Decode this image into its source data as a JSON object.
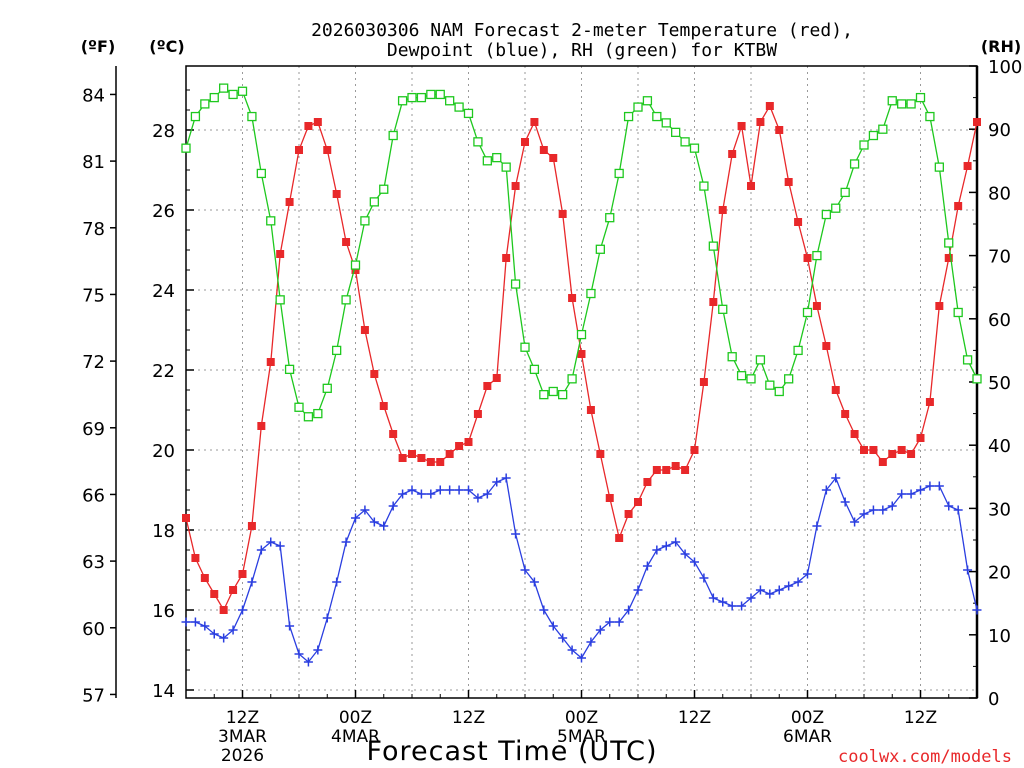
{
  "chart_data": {
    "type": "line",
    "title_line1": "2026030306 NAM Forecast 2-meter Temperature (red),",
    "title_line2": "Dewpoint (blue), RH (green) for KTBW",
    "xlabel": "Forecast Time (UTC)",
    "credit": "coolwx.com/models",
    "unit_f": "(ºF)",
    "unit_c": "(ºC)",
    "unit_rh": "(RH)",
    "x_range_hours": [
      0,
      84
    ],
    "celsius_range": [
      13.8,
      29.6
    ],
    "rh_range": [
      0,
      100
    ],
    "celsius_ticks": [
      "14",
      "16",
      "18",
      "20",
      "22",
      "24",
      "26",
      "28"
    ],
    "fahrenheit_ticks": [
      "57",
      "60",
      "63",
      "66",
      "69",
      "72",
      "75",
      "78",
      "81",
      "84"
    ],
    "rh_ticks": [
      "0",
      "10",
      "20",
      "30",
      "40",
      "50",
      "60",
      "70",
      "80",
      "90",
      "100"
    ],
    "x_ticks": [
      {
        "hour": 6,
        "label": "12Z",
        "sub": "3MAR",
        "year": "2026"
      },
      {
        "hour": 18,
        "label": "00Z",
        "sub": "4MAR",
        "year": ""
      },
      {
        "hour": 30,
        "label": "12Z",
        "sub": "",
        "year": ""
      },
      {
        "hour": 42,
        "label": "00Z",
        "sub": "5MAR",
        "year": ""
      },
      {
        "hour": 54,
        "label": "12Z",
        "sub": "",
        "year": ""
      },
      {
        "hour": 66,
        "label": "00Z",
        "sub": "6MAR",
        "year": ""
      },
      {
        "hour": 78,
        "label": "12Z",
        "sub": "",
        "year": ""
      }
    ],
    "series": [
      {
        "name": "2-meter Temperature",
        "axis": "celsius",
        "color": "#e8282a",
        "marker": "filled-square",
        "hours": [
          0,
          1,
          2,
          3,
          4,
          5,
          6,
          7,
          8,
          9,
          10,
          11,
          12,
          13,
          14,
          15,
          16,
          17,
          18,
          19,
          20,
          21,
          22,
          23,
          24,
          25,
          26,
          27,
          28,
          29,
          30,
          31,
          32,
          33,
          34,
          35,
          36,
          37,
          38,
          39,
          40,
          41,
          42,
          43,
          44,
          45,
          46,
          47,
          48,
          49,
          50,
          51,
          52,
          53,
          54,
          55,
          56,
          57,
          58,
          59,
          60,
          61,
          62,
          63,
          64,
          65,
          66,
          67,
          68,
          69,
          70,
          71,
          72,
          73,
          74,
          75,
          76,
          77,
          78,
          79,
          80,
          81,
          82,
          83,
          84
        ],
        "values": [
          18.3,
          17.3,
          16.8,
          16.4,
          16.0,
          16.5,
          16.9,
          18.1,
          20.6,
          22.2,
          24.9,
          26.2,
          27.5,
          28.1,
          28.2,
          27.5,
          26.4,
          25.2,
          24.5,
          23.0,
          21.9,
          21.1,
          20.4,
          19.8,
          19.9,
          19.8,
          19.7,
          19.7,
          19.9,
          20.1,
          20.2,
          20.9,
          21.6,
          21.8,
          24.8,
          26.6,
          27.7,
          28.2,
          27.5,
          27.3,
          25.9,
          23.8,
          22.4,
          21.0,
          19.9,
          18.8,
          17.8,
          18.4,
          18.7,
          19.2,
          19.5,
          19.5,
          19.6,
          19.5,
          20.0,
          21.7,
          23.7,
          26.0,
          27.4,
          28.1,
          26.6,
          28.2,
          28.6,
          28.0,
          26.7,
          25.7,
          24.8,
          23.6,
          22.6,
          21.5,
          20.9,
          20.4,
          20.0,
          20.0,
          19.7,
          19.9,
          20.0,
          19.9,
          20.3,
          21.2,
          23.6,
          24.8,
          26.1,
          27.1,
          28.2
        ]
      },
      {
        "name": "Dewpoint",
        "axis": "celsius",
        "color": "#2a3ee0",
        "marker": "plus",
        "hours": [
          0,
          1,
          2,
          3,
          4,
          5,
          6,
          7,
          8,
          9,
          10,
          11,
          12,
          13,
          14,
          15,
          16,
          17,
          18,
          19,
          20,
          21,
          22,
          23,
          24,
          25,
          26,
          27,
          28,
          29,
          30,
          31,
          32,
          33,
          34,
          35,
          36,
          37,
          38,
          39,
          40,
          41,
          42,
          43,
          44,
          45,
          46,
          47,
          48,
          49,
          50,
          51,
          52,
          53,
          54,
          55,
          56,
          57,
          58,
          59,
          60,
          61,
          62,
          63,
          64,
          65,
          66,
          67,
          68,
          69,
          70,
          71,
          72,
          73,
          74,
          75,
          76,
          77,
          78,
          79,
          80,
          81,
          82,
          83,
          84
        ],
        "values": [
          15.7,
          15.7,
          15.6,
          15.4,
          15.3,
          15.5,
          16.0,
          16.7,
          17.5,
          17.7,
          17.6,
          15.6,
          14.9,
          14.7,
          15.0,
          15.8,
          16.7,
          17.7,
          18.3,
          18.5,
          18.2,
          18.1,
          18.6,
          18.9,
          19.0,
          18.9,
          18.9,
          19.0,
          19.0,
          19.0,
          19.0,
          18.8,
          18.9,
          19.2,
          19.3,
          17.9,
          17.0,
          16.7,
          16.0,
          15.6,
          15.3,
          15.0,
          14.8,
          15.2,
          15.5,
          15.7,
          15.7,
          16.0,
          16.5,
          17.1,
          17.5,
          17.6,
          17.7,
          17.4,
          17.2,
          16.8,
          16.3,
          16.2,
          16.1,
          16.1,
          16.3,
          16.5,
          16.4,
          16.5,
          16.6,
          16.7,
          16.9,
          18.1,
          19.0,
          19.3,
          18.7,
          18.2,
          18.4,
          18.5,
          18.5,
          18.6,
          18.9,
          18.9,
          19.0,
          19.1,
          19.1,
          18.6,
          18.5,
          17.0,
          16.0
        ]
      },
      {
        "name": "RH",
        "axis": "rh",
        "color": "#1ec81e",
        "marker": "open-square",
        "hours": [
          0,
          1,
          2,
          3,
          4,
          5,
          6,
          7,
          8,
          9,
          10,
          11,
          12,
          13,
          14,
          15,
          16,
          17,
          18,
          19,
          20,
          21,
          22,
          23,
          24,
          25,
          26,
          27,
          28,
          29,
          30,
          31,
          32,
          33,
          34,
          35,
          36,
          37,
          38,
          39,
          40,
          41,
          42,
          43,
          44,
          45,
          46,
          47,
          48,
          49,
          50,
          51,
          52,
          53,
          54,
          55,
          56,
          57,
          58,
          59,
          60,
          61,
          62,
          63,
          64,
          65,
          66,
          67,
          68,
          69,
          70,
          71,
          72,
          73,
          74,
          75,
          76,
          77,
          78,
          79,
          80,
          81,
          82,
          83,
          84
        ],
        "values": [
          87,
          92,
          94,
          95,
          96.5,
          95.5,
          96,
          92,
          83,
          75.5,
          63,
          52,
          46,
          44.5,
          45,
          49,
          55,
          63,
          68.5,
          75.5,
          78.5,
          80.5,
          89,
          94.5,
          95,
          95,
          95.5,
          95.5,
          94.5,
          93.5,
          92.5,
          88,
          85,
          85.5,
          84,
          65.5,
          55.5,
          52,
          48,
          48.5,
          48,
          50.5,
          57.5,
          64,
          71,
          76,
          83,
          92,
          93.5,
          94.5,
          92,
          91,
          89.5,
          88,
          87,
          81,
          71.5,
          61.5,
          54,
          51,
          50.5,
          53.5,
          49.5,
          48.5,
          50.5,
          55,
          61,
          70,
          76.5,
          77.5,
          80,
          84.5,
          87.5,
          89,
          90,
          94.5,
          94,
          94,
          95,
          92,
          84,
          72,
          61,
          53.5,
          50.5
        ]
      }
    ]
  }
}
